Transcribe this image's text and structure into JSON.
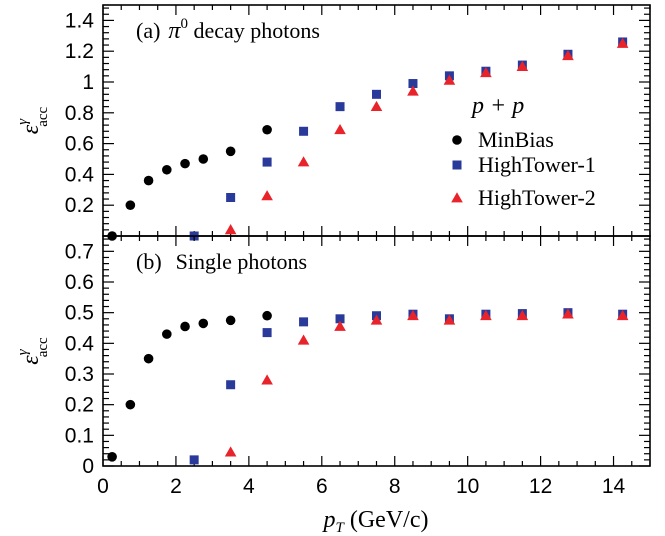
{
  "colors": {
    "minbias": "#000000",
    "hightower1": "#2a3a9a",
    "hightower2": "#e8232a"
  },
  "legend": {
    "header": "p + p",
    "items": [
      {
        "name": "MinBias",
        "marker": "circle",
        "color": "#000000"
      },
      {
        "name": "HighTower-1",
        "marker": "square",
        "color": "#2a3a9a"
      },
      {
        "name": "HighTower-2",
        "marker": "triangle",
        "color": "#e8232a"
      }
    ]
  },
  "xaxis": {
    "label_main": "p",
    "label_sub": "T",
    "label_units": " (GeV/c)"
  },
  "chart_data": [
    {
      "type": "scatter",
      "panel_label": "(a)",
      "title_symbol": "π",
      "title_sup": "0",
      "title_text": " decay photons",
      "ylabel_main": "ε",
      "ylabel_sup": "γ",
      "ylabel_sub": "acc",
      "xlim": [
        0,
        15
      ],
      "ylim": [
        0,
        1.5
      ],
      "xticks": [
        0,
        2,
        4,
        6,
        8,
        10,
        12,
        14
      ],
      "yticks": [
        0.2,
        0.4,
        0.6,
        0.8,
        1,
        1.2,
        1.4
      ],
      "ytick_labels": [
        "0.2",
        "0.4",
        "0.6",
        "0.8",
        "1",
        "1.2",
        "1.4"
      ],
      "series": [
        {
          "name": "MinBias",
          "marker": "circle",
          "x": [
            0.25,
            0.75,
            1.25,
            1.75,
            2.25,
            2.75,
            3.5,
            4.5
          ],
          "y": [
            0.0,
            0.2,
            0.36,
            0.43,
            0.47,
            0.5,
            0.55,
            0.69
          ]
        },
        {
          "name": "HighTower-1",
          "marker": "square",
          "x": [
            2.5,
            3.5,
            4.5,
            5.5,
            6.5,
            7.5,
            8.5,
            9.5,
            10.5,
            11.5,
            12.75,
            14.25
          ],
          "y": [
            0.0,
            0.25,
            0.48,
            0.68,
            0.84,
            0.92,
            0.99,
            1.04,
            1.07,
            1.11,
            1.18,
            1.26
          ]
        },
        {
          "name": "HighTower-2",
          "marker": "triangle",
          "x": [
            3.5,
            4.5,
            5.5,
            6.5,
            7.5,
            8.5,
            9.5,
            10.5,
            11.5,
            12.75,
            14.25
          ],
          "y": [
            0.04,
            0.26,
            0.48,
            0.69,
            0.84,
            0.94,
            1.01,
            1.06,
            1.1,
            1.17,
            1.25
          ]
        }
      ]
    },
    {
      "type": "scatter",
      "panel_label": "(b)",
      "title_text": "Single photons",
      "ylabel_main": "ε",
      "ylabel_sup": "γ",
      "ylabel_sub": "acc",
      "xlim": [
        0,
        15
      ],
      "ylim": [
        0,
        0.75
      ],
      "xticks": [
        0,
        2,
        4,
        6,
        8,
        10,
        12,
        14
      ],
      "xtick_labels": [
        "0",
        "2",
        "4",
        "6",
        "8",
        "10",
        "12",
        "14"
      ],
      "yticks": [
        0,
        0.1,
        0.2,
        0.3,
        0.4,
        0.5,
        0.6,
        0.7
      ],
      "ytick_labels": [
        "0",
        "0.1",
        "0.2",
        "0.3",
        "0.4",
        "0.5",
        "0.6",
        "0.7"
      ],
      "series": [
        {
          "name": "MinBias",
          "marker": "circle",
          "x": [
            0.25,
            0.75,
            1.25,
            1.75,
            2.25,
            2.75,
            3.5,
            4.5
          ],
          "y": [
            0.03,
            0.2,
            0.35,
            0.43,
            0.455,
            0.465,
            0.475,
            0.49
          ]
        },
        {
          "name": "HighTower-1",
          "marker": "square",
          "x": [
            2.5,
            3.5,
            4.5,
            5.5,
            6.5,
            7.5,
            8.5,
            9.5,
            10.5,
            11.5,
            12.75,
            14.25
          ],
          "y": [
            0.02,
            0.265,
            0.435,
            0.47,
            0.48,
            0.49,
            0.495,
            0.48,
            0.495,
            0.497,
            0.5,
            0.495
          ]
        },
        {
          "name": "HighTower-2",
          "marker": "triangle",
          "x": [
            3.5,
            4.5,
            5.5,
            6.5,
            7.5,
            8.5,
            9.5,
            10.5,
            11.5,
            12.75,
            14.25
          ],
          "y": [
            0.045,
            0.28,
            0.41,
            0.455,
            0.475,
            0.49,
            0.475,
            0.49,
            0.49,
            0.495,
            0.49
          ]
        }
      ]
    }
  ]
}
